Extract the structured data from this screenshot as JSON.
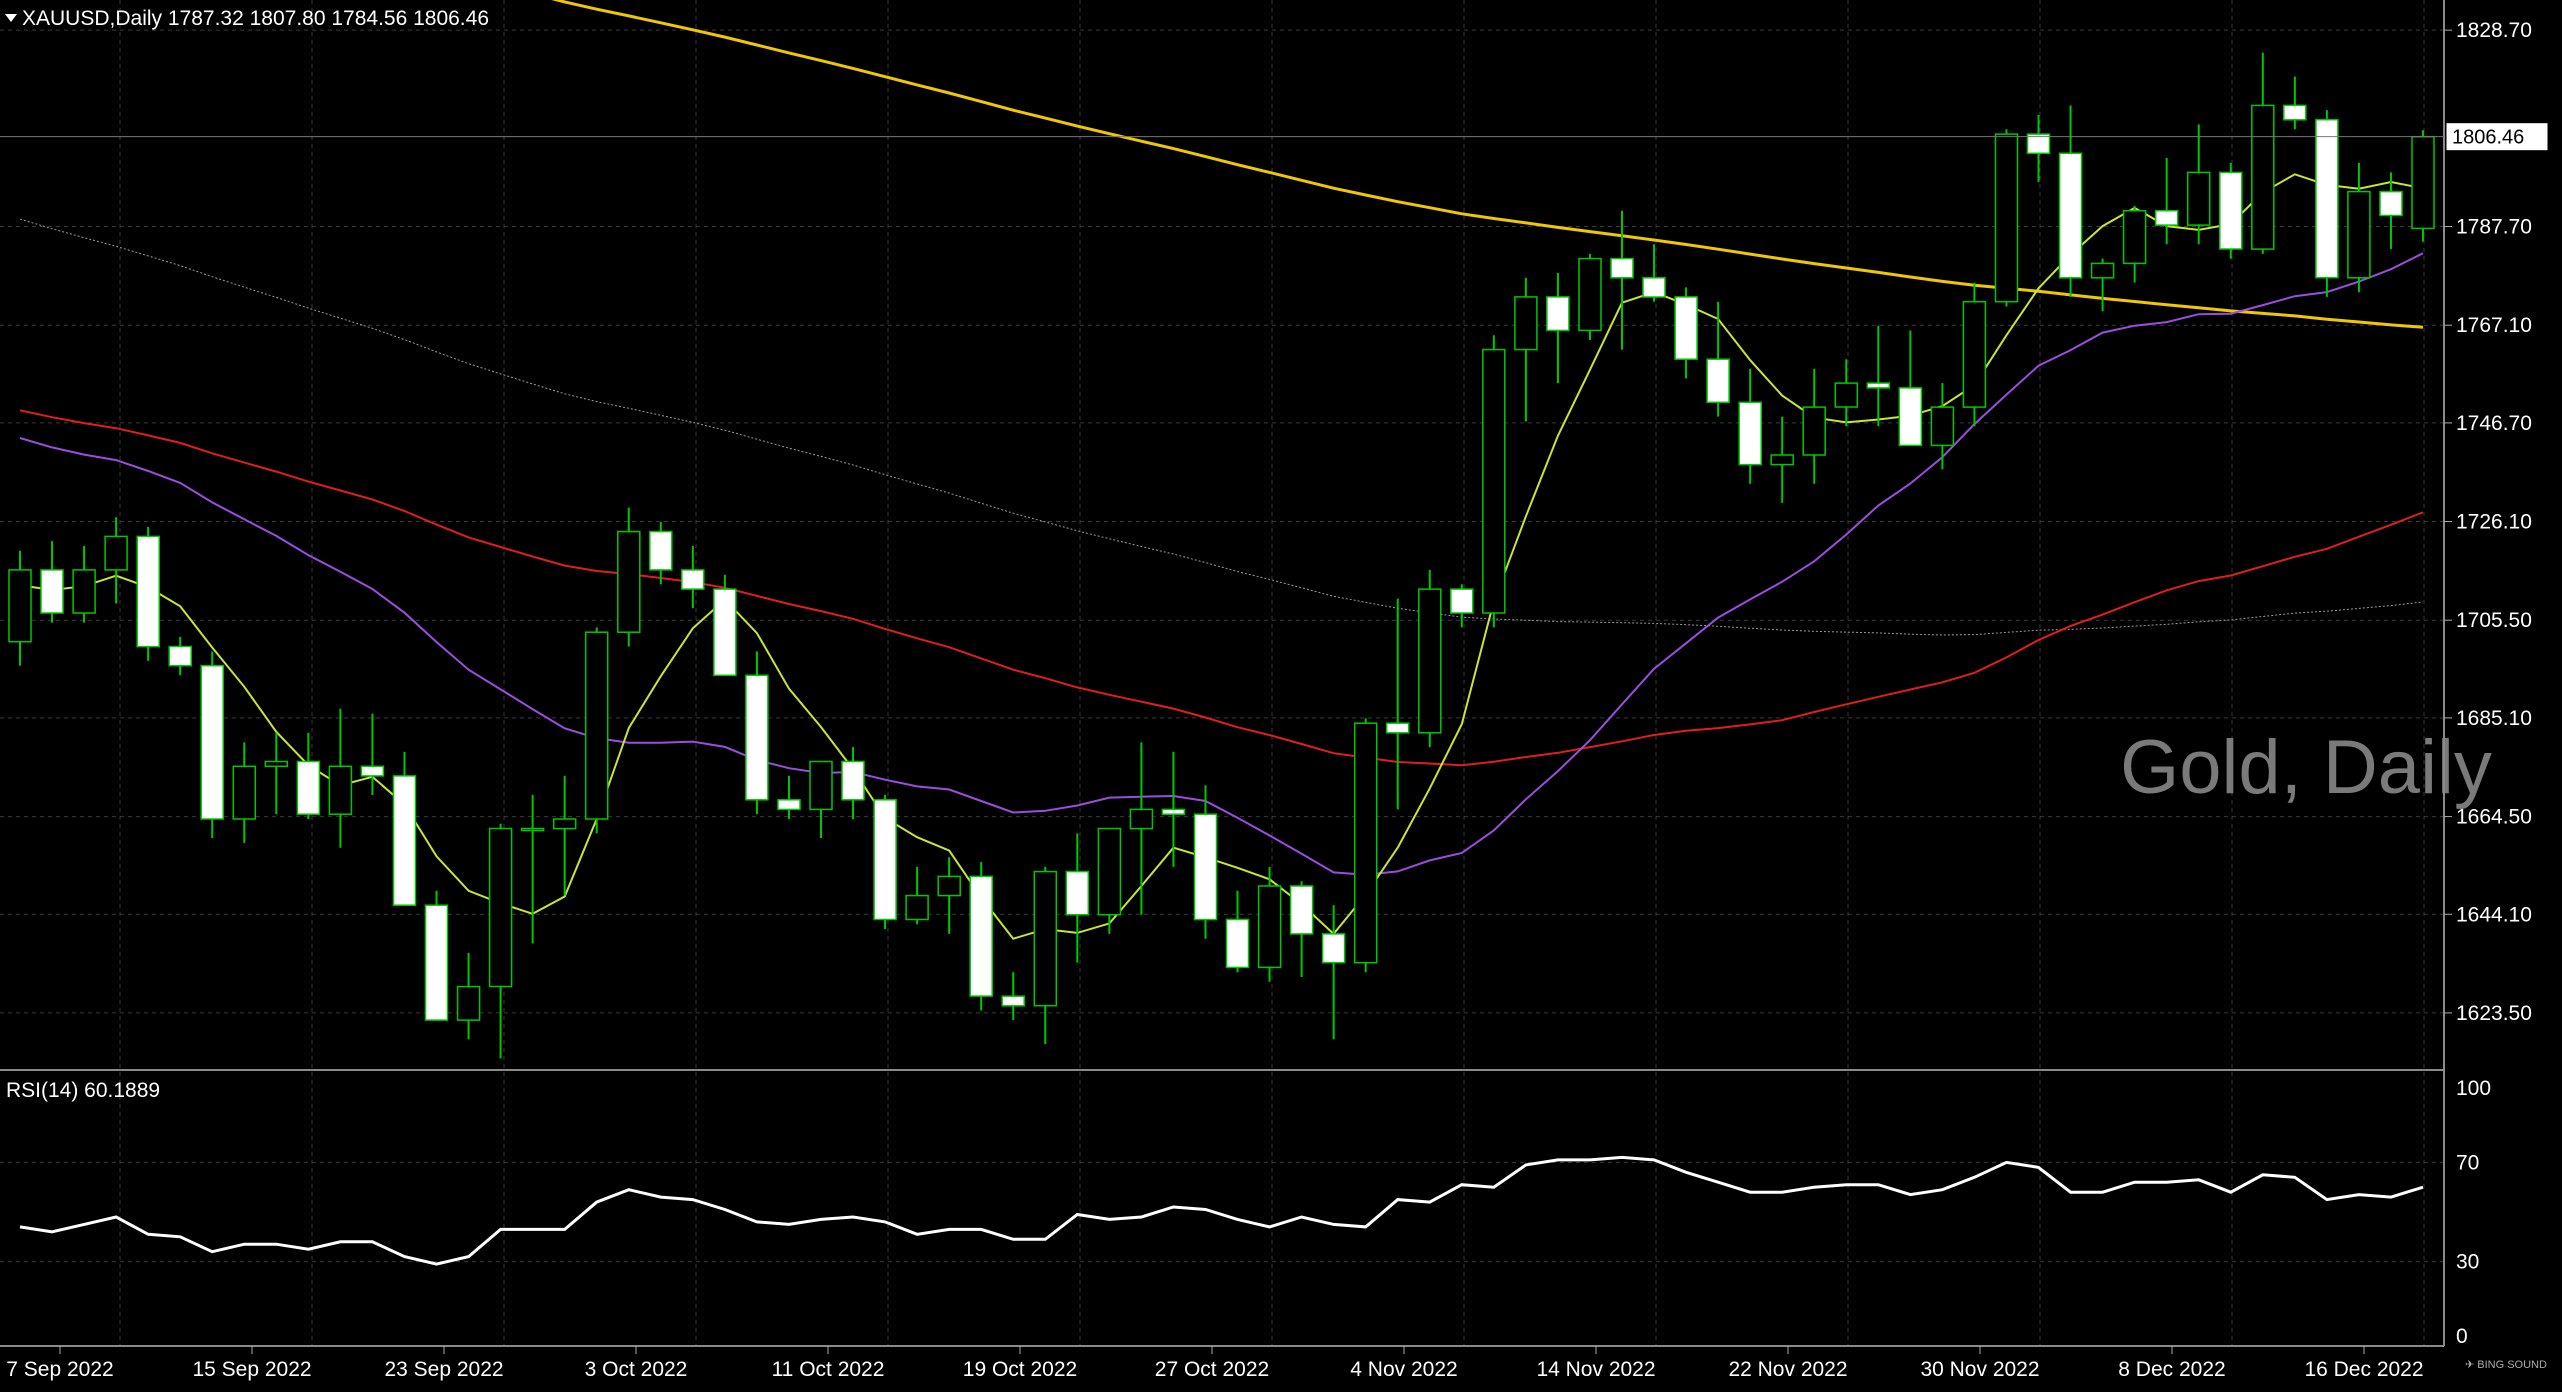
{
  "header": {
    "symbol_info": "XAUUSD,Daily  1787.32 1807.80 1784.56 1806.46"
  },
  "watermark": "Gold, Daily",
  "current_price_label": "1806.46",
  "rsi": {
    "label": "RSI(14) 60.1889",
    "levels": [
      "100",
      "70",
      "30",
      "0"
    ],
    "values": [
      44,
      42,
      45,
      48,
      41,
      40,
      34,
      37,
      37,
      35,
      38,
      38,
      32,
      29,
      32,
      43,
      43,
      43,
      54,
      59,
      56,
      55,
      51,
      46,
      45,
      47,
      48,
      46,
      41,
      43,
      43,
      39,
      39,
      49,
      47,
      48,
      52,
      51,
      47,
      44,
      48,
      45,
      44,
      55,
      54,
      61,
      60,
      69,
      71,
      71,
      72,
      71,
      66,
      62,
      58,
      58,
      60,
      61,
      61,
      57,
      59,
      64,
      70,
      68,
      58,
      58,
      62,
      62,
      63,
      58,
      65,
      64,
      55,
      57,
      56,
      60
    ]
  },
  "price_axis": {
    "labels": [
      "1828.70",
      "1787.70",
      "1767.10",
      "1746.70",
      "1726.10",
      "1705.50",
      "1685.10",
      "1664.50",
      "1644.10",
      "1623.50"
    ]
  },
  "date_axis": {
    "labels": [
      "7 Sep 2022",
      "15 Sep 2022",
      "23 Sep 2022",
      "3 Oct 2022",
      "11 Oct 2022",
      "19 Oct 2022",
      "27 Oct 2022",
      "4 Nov 2022",
      "14 Nov 2022",
      "22 Nov 2022",
      "30 Nov 2022",
      "8 Dec 2022",
      "16 Dec 2022"
    ]
  },
  "colors": {
    "background": "#000000",
    "grid": "#3a3a3a",
    "up_candle": "#000000",
    "down_candle": "#ffffff",
    "wick": "#00c800",
    "ma_fast": "#c8e632",
    "ma_20": "#9b4de0",
    "ma_50": "#e01e1e",
    "ma_100": "#9a9a9a",
    "ma_200": "#f0c800",
    "rsi_line": "#ffffff",
    "axis_text": "#ffffff"
  },
  "chart_data": {
    "type": "candlestick",
    "title": "XAUUSD,Daily",
    "ylim": [
      1612,
      1835
    ],
    "ohlc": [
      [
        1701,
        1720,
        1696,
        1716
      ],
      [
        1716,
        1722,
        1705,
        1707
      ],
      [
        1707,
        1721,
        1705,
        1716
      ],
      [
        1716,
        1727,
        1709,
        1723
      ],
      [
        1723,
        1725,
        1697,
        1700
      ],
      [
        1700,
        1702,
        1694,
        1696
      ],
      [
        1696,
        1699,
        1660,
        1664
      ],
      [
        1664,
        1680,
        1659,
        1675
      ],
      [
        1675,
        1682,
        1665,
        1676
      ],
      [
        1676,
        1682,
        1664,
        1665
      ],
      [
        1665,
        1687,
        1658,
        1675
      ],
      [
        1675,
        1686,
        1669,
        1673
      ],
      [
        1673,
        1678,
        1646,
        1646
      ],
      [
        1646,
        1649,
        1622,
        1622
      ],
      [
        1622,
        1636,
        1618,
        1629
      ],
      [
        1629,
        1663,
        1614,
        1662
      ],
      [
        1662,
        1669,
        1638,
        1662
      ],
      [
        1662,
        1673,
        1648,
        1664
      ],
      [
        1664,
        1704,
        1661,
        1703
      ],
      [
        1703,
        1729,
        1700,
        1724
      ],
      [
        1724,
        1726,
        1713,
        1716
      ],
      [
        1716,
        1721,
        1708,
        1712
      ],
      [
        1712,
        1715,
        1696,
        1694
      ],
      [
        1694,
        1699,
        1665,
        1668
      ],
      [
        1668,
        1673,
        1664,
        1666
      ],
      [
        1666,
        1676,
        1660,
        1676
      ],
      [
        1676,
        1679,
        1664,
        1668
      ],
      [
        1668,
        1669,
        1641,
        1643
      ],
      [
        1643,
        1654,
        1642,
        1648
      ],
      [
        1648,
        1656,
        1640,
        1652
      ],
      [
        1652,
        1655,
        1624,
        1627
      ],
      [
        1627,
        1632,
        1622,
        1625
      ],
      [
        1625,
        1654,
        1617,
        1653
      ],
      [
        1653,
        1661,
        1634,
        1644
      ],
      [
        1644,
        1662,
        1640,
        1662
      ],
      [
        1662,
        1680,
        1644,
        1666
      ],
      [
        1666,
        1678,
        1654,
        1665
      ],
      [
        1665,
        1671,
        1639,
        1643
      ],
      [
        1643,
        1649,
        1632,
        1633
      ],
      [
        1633,
        1654,
        1630,
        1650
      ],
      [
        1650,
        1651,
        1631,
        1640
      ],
      [
        1640,
        1646,
        1618,
        1634
      ],
      [
        1634,
        1685,
        1632,
        1684
      ],
      [
        1684,
        1710,
        1666,
        1682
      ],
      [
        1682,
        1716,
        1679,
        1712
      ],
      [
        1712,
        1713,
        1704,
        1707
      ],
      [
        1707,
        1765,
        1704,
        1762
      ],
      [
        1762,
        1777,
        1747,
        1773
      ],
      [
        1773,
        1778,
        1755,
        1766
      ],
      [
        1766,
        1782,
        1764,
        1781
      ],
      [
        1781,
        1791,
        1762,
        1777
      ],
      [
        1777,
        1784,
        1772,
        1773
      ],
      [
        1773,
        1775,
        1756,
        1760
      ],
      [
        1760,
        1772,
        1748,
        1751
      ],
      [
        1751,
        1758,
        1734,
        1738
      ],
      [
        1738,
        1748,
        1730,
        1740
      ],
      [
        1740,
        1758,
        1734,
        1750
      ],
      [
        1750,
        1760,
        1746,
        1755
      ],
      [
        1755,
        1767,
        1746,
        1754
      ],
      [
        1754,
        1766,
        1742,
        1742
      ],
      [
        1742,
        1755,
        1737,
        1750
      ],
      [
        1750,
        1776,
        1746,
        1772
      ],
      [
        1772,
        1808,
        1771,
        1807
      ],
      [
        1807,
        1811,
        1797,
        1803
      ],
      [
        1803,
        1813,
        1773,
        1777
      ],
      [
        1777,
        1781,
        1770,
        1780
      ],
      [
        1780,
        1792,
        1776,
        1791
      ],
      [
        1791,
        1802,
        1784,
        1788
      ],
      [
        1788,
        1809,
        1784,
        1799
      ],
      [
        1799,
        1801,
        1781,
        1783
      ],
      [
        1783,
        1824,
        1782,
        1813
      ],
      [
        1813,
        1819,
        1808,
        1810
      ],
      [
        1810,
        1812,
        1773,
        1777
      ],
      [
        1777,
        1801,
        1774,
        1795
      ],
      [
        1795,
        1799,
        1783,
        1790
      ],
      [
        1787.32,
        1807.8,
        1784.56,
        1806.46
      ]
    ],
    "series": [
      {
        "name": "RSI(14)",
        "values": [
          44,
          42,
          45,
          48,
          41,
          40,
          34,
          37,
          37,
          35,
          38,
          38,
          32,
          29,
          32,
          43,
          43,
          43,
          54,
          59,
          56,
          55,
          51,
          46,
          45,
          47,
          48,
          46,
          41,
          43,
          43,
          39,
          39,
          49,
          47,
          48,
          52,
          51,
          47,
          44,
          48,
          45,
          44,
          55,
          54,
          61,
          60,
          69,
          71,
          71,
          72,
          71,
          66,
          62,
          58,
          58,
          60,
          61,
          61,
          57,
          59,
          64,
          70,
          68,
          58,
          58,
          62,
          62,
          63,
          58,
          65,
          64,
          55,
          57,
          56,
          60
        ]
      }
    ]
  }
}
